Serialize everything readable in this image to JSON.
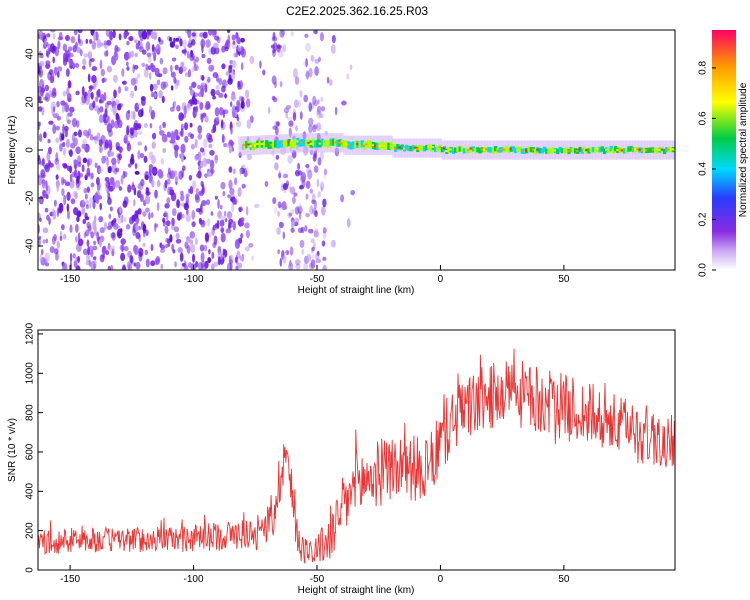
{
  "colors": {
    "background": "#ffffff",
    "snr_line": "#ee3333",
    "scatter": "#7a22ee",
    "band_core": "#ee2222"
  },
  "colorbar_stops": [
    "#ffffff",
    "#8a2be2",
    "#2a3cff",
    "#00d8ff",
    "#00cc44",
    "#ffff00",
    "#ff9900",
    "#ff0066"
  ],
  "chart_data": [
    {
      "type": "heatmap",
      "title": "C2E2.2025.362.16.25.R03",
      "xlabel": "Height of straight line (km)",
      "ylabel": "Frequency (Hz)",
      "xlim": [
        -163,
        95
      ],
      "ylim": [
        -50,
        50
      ],
      "xticks": [
        "-150",
        "-100",
        "-50",
        "0",
        "50"
      ],
      "xtick_values": [
        -150,
        -100,
        -50,
        0,
        50
      ],
      "yticks": [
        "40",
        "20",
        "0",
        "-20",
        "-40"
      ],
      "ytick_values": [
        40,
        20,
        0,
        -20,
        -40
      ],
      "colorbar": {
        "label": "Normalized spectral amplitude",
        "range": [
          0,
          0.95
        ],
        "ticks": [
          "0.0",
          "0.2",
          "0.4",
          "0.6",
          "0.8"
        ],
        "tick_values": [
          0,
          0.2,
          0.4,
          0.6,
          0.8
        ]
      },
      "description_series": [
        {
          "name": "noise scatter",
          "x_range": [
            -163,
            -35
          ],
          "y_range": [
            -50,
            50
          ],
          "amplitude": "0.05-0.3"
        },
        {
          "name": "signal band",
          "x_range": [
            -80,
            95
          ],
          "center_hz": [
            2,
            4,
            2,
            1,
            0,
            0
          ],
          "center_x": [
            -75,
            -55,
            -40,
            -20,
            0,
            95
          ],
          "amplitude": "0.4-0.95"
        }
      ]
    },
    {
      "type": "line",
      "title": "",
      "xlabel": "Height of straight line (km)",
      "ylabel": "SNR (10 * v/v)",
      "xlim": [
        -163,
        95
      ],
      "ylim": [
        0,
        1220
      ],
      "xticks": [
        "-150",
        "-100",
        "-50",
        "0",
        "50"
      ],
      "xtick_values": [
        -150,
        -100,
        -50,
        0,
        50
      ],
      "yticks": [
        "0",
        "200",
        "400",
        "600",
        "800",
        "1000",
        "1200"
      ],
      "ytick_values": [
        0,
        200,
        400,
        600,
        800,
        1000,
        1200
      ],
      "series": [
        {
          "name": "SNR",
          "x": [
            -163,
            -150,
            -120,
            -100,
            -80,
            -72,
            -68,
            -65,
            -63,
            -61,
            -59,
            -57,
            -55,
            -50,
            -45,
            -40,
            -35,
            -30,
            -20,
            -10,
            -5,
            0,
            5,
            10,
            20,
            30,
            40,
            50,
            60,
            70,
            80,
            90,
            95
          ],
          "mean": [
            140,
            150,
            155,
            160,
            185,
            200,
            260,
            470,
            620,
            460,
            250,
            140,
            100,
            110,
            150,
            300,
            420,
            460,
            520,
            520,
            490,
            650,
            760,
            820,
            880,
            900,
            860,
            830,
            790,
            740,
            700,
            660,
            650
          ],
          "spread": [
            60,
            65,
            65,
            70,
            80,
            85,
            120,
            150,
            140,
            140,
            120,
            90,
            70,
            80,
            120,
            160,
            180,
            180,
            170,
            170,
            170,
            170,
            170,
            170,
            170,
            180,
            170,
            170,
            170,
            160,
            160,
            150,
            150
          ]
        }
      ]
    }
  ]
}
